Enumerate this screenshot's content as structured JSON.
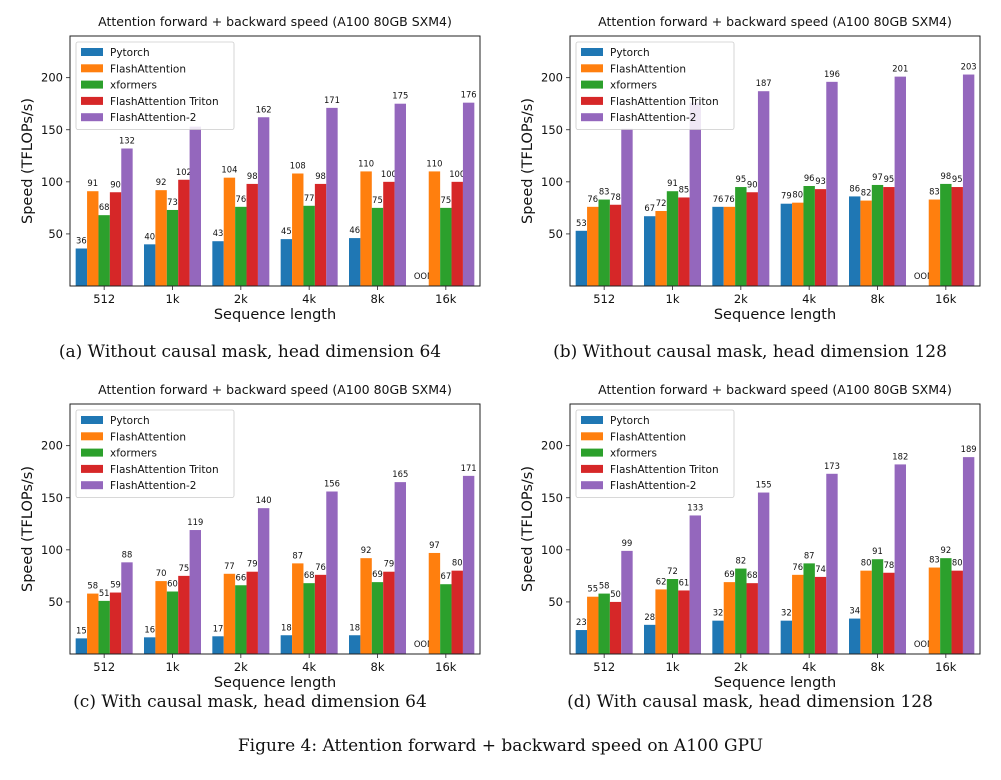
{
  "figure_caption": "Figure 4: Attention forward + backward speed on A100 GPU",
  "panels": [
    {
      "caption": "(a) Without causal mask, head dimension 64"
    },
    {
      "caption": "(b) Without causal mask, head dimension 128"
    },
    {
      "caption": "(c) With causal mask, head dimension 64"
    },
    {
      "caption": "(d) With causal mask, head dimension 128"
    }
  ],
  "colors": {
    "Pytorch": "#1f77b4",
    "FlashAttention": "#ff7f0e",
    "xformers": "#2ca02c",
    "FlashAttention Triton": "#d62728",
    "FlashAttention-2": "#9467bd"
  },
  "chart_data": [
    {
      "type": "bar",
      "title": "Attention forward + backward speed (A100 80GB SXM4)",
      "xlabel": "Sequence length",
      "ylabel": "Speed (TFLOPs/s)",
      "ylim": [
        0,
        240
      ],
      "yticks": [
        50,
        100,
        150,
        200
      ],
      "legend": "top-left",
      "categories": [
        "512",
        "1k",
        "2k",
        "4k",
        "8k",
        "16k"
      ],
      "oom_text": "OOM",
      "series": [
        {
          "name": "Pytorch",
          "values": [
            36,
            40,
            43,
            45,
            46,
            null
          ]
        },
        {
          "name": "FlashAttention",
          "values": [
            91,
            92,
            104,
            108,
            110,
            110
          ]
        },
        {
          "name": "xformers",
          "values": [
            68,
            73,
            76,
            77,
            75,
            75
          ]
        },
        {
          "name": "FlashAttention Triton",
          "values": [
            90,
            102,
            98,
            98,
            100,
            100
          ]
        },
        {
          "name": "FlashAttention-2",
          "values": [
            132,
            153,
            162,
            171,
            175,
            176
          ]
        }
      ],
      "label_overrides": [
        [
          null,
          null,
          null,
          null,
          null
        ],
        [
          null,
          null,
          null,
          null,
          ""
        ],
        [
          null,
          null,
          null,
          null,
          null
        ],
        [
          null,
          null,
          null,
          null,
          null
        ],
        [
          null,
          null,
          null,
          null,
          null
        ],
        [
          null,
          null,
          null,
          null,
          null
        ]
      ]
    },
    {
      "type": "bar",
      "title": "Attention forward + backward speed (A100 80GB SXM4)",
      "xlabel": "Sequence length",
      "ylabel": "Speed (TFLOPs/s)",
      "ylim": [
        0,
        240
      ],
      "yticks": [
        50,
        100,
        150,
        200
      ],
      "legend": "top-left",
      "categories": [
        "512",
        "1k",
        "2k",
        "4k",
        "8k",
        "16k"
      ],
      "oom_text": "OOM",
      "series": [
        {
          "name": "Pytorch",
          "values": [
            53,
            67,
            76,
            79,
            86,
            null
          ]
        },
        {
          "name": "FlashAttention",
          "values": [
            76,
            72,
            76,
            80,
            82,
            83
          ]
        },
        {
          "name": "xformers",
          "values": [
            83,
            91,
            95,
            96,
            97,
            98
          ]
        },
        {
          "name": "FlashAttention Triton",
          "values": [
            78,
            85,
            90,
            93,
            95,
            95
          ]
        },
        {
          "name": "FlashAttention-2",
          "values": [
            151,
            176,
            187,
            196,
            201,
            203
          ]
        }
      ],
      "label_overrides": [
        [
          null,
          null,
          null,
          null,
          ""
        ],
        [
          null,
          null,
          null,
          null,
          ""
        ],
        [
          null,
          null,
          null,
          null,
          null
        ],
        [
          null,
          null,
          null,
          null,
          null
        ],
        [
          null,
          null,
          null,
          null,
          null
        ],
        [
          null,
          null,
          null,
          null,
          null
        ]
      ]
    },
    {
      "type": "bar",
      "title": "Attention forward + backward speed (A100 80GB SXM4)",
      "xlabel": "Sequence length",
      "ylabel": "Speed (TFLOPs/s)",
      "ylim": [
        0,
        240
      ],
      "yticks": [
        50,
        100,
        150,
        200
      ],
      "legend": "top-left",
      "categories": [
        "512",
        "1k",
        "2k",
        "4k",
        "8k",
        "16k"
      ],
      "oom_text": "OOM",
      "series": [
        {
          "name": "Pytorch",
          "values": [
            15,
            16,
            17,
            18,
            18,
            null
          ]
        },
        {
          "name": "FlashAttention",
          "values": [
            58,
            70,
            77,
            87,
            92,
            97
          ]
        },
        {
          "name": "xformers",
          "values": [
            51,
            60,
            66,
            68,
            69,
            67
          ]
        },
        {
          "name": "FlashAttention Triton",
          "values": [
            59,
            75,
            79,
            76,
            79,
            80
          ]
        },
        {
          "name": "FlashAttention-2",
          "values": [
            88,
            119,
            140,
            156,
            165,
            171
          ]
        }
      ],
      "label_overrides": []
    },
    {
      "type": "bar",
      "title": "Attention forward + backward speed (A100 80GB SXM4)",
      "xlabel": "Sequence length",
      "ylabel": "Speed (TFLOPs/s)",
      "ylim": [
        0,
        240
      ],
      "yticks": [
        50,
        100,
        150,
        200
      ],
      "legend": "top-left",
      "categories": [
        "512",
        "1k",
        "2k",
        "4k",
        "8k",
        "16k"
      ],
      "oom_text": "OOM",
      "series": [
        {
          "name": "Pytorch",
          "values": [
            23,
            28,
            32,
            32,
            34,
            null
          ]
        },
        {
          "name": "FlashAttention",
          "values": [
            55,
            62,
            69,
            76,
            80,
            83
          ]
        },
        {
          "name": "xformers",
          "values": [
            58,
            72,
            82,
            87,
            91,
            92
          ]
        },
        {
          "name": "FlashAttention Triton",
          "values": [
            50,
            61,
            68,
            74,
            78,
            80
          ]
        },
        {
          "name": "FlashAttention-2",
          "values": [
            99,
            133,
            155,
            173,
            182,
            189
          ]
        }
      ],
      "label_overrides": []
    }
  ]
}
